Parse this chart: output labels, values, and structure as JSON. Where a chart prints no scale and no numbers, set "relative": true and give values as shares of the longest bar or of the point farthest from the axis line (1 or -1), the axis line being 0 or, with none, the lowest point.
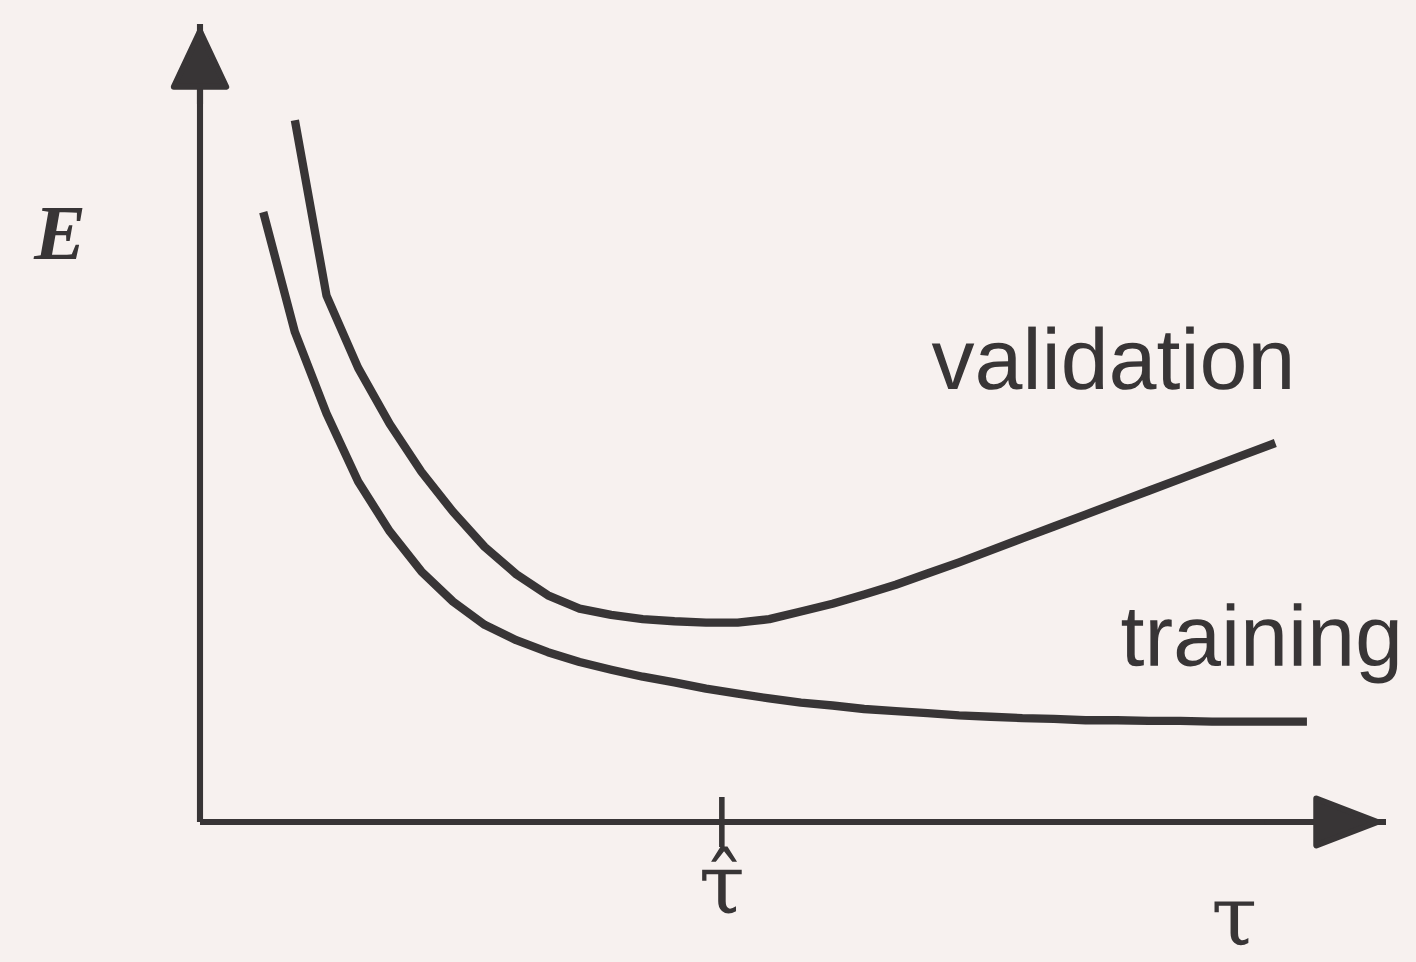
{
  "chart_data": {
    "type": "line",
    "relative": true,
    "xlabel": "τ",
    "ylabel": "E",
    "annotations": [
      "τ̂"
    ],
    "categories": [
      null,
      null,
      null,
      null,
      null,
      null,
      null,
      null,
      null,
      null,
      null,
      null,
      null,
      null,
      null,
      null,
      null,
      null,
      null,
      null,
      null,
      null,
      null,
      null,
      null,
      null,
      null,
      null,
      null,
      null,
      null,
      null,
      null,
      null
    ],
    "series": [
      {
        "name": "validation",
        "color": "#383536",
        "values": [
          null,
          1,
          0.75,
          0.647,
          0.567,
          0.499,
          0.442,
          0.392,
          0.353,
          0.323,
          0.304,
          0.295,
          0.289,
          0.286,
          0.284,
          0.284,
          0.289,
          0.3,
          0.311,
          0.324,
          0.338,
          0.354,
          0.37,
          0.387,
          0.404,
          0.421,
          0.438,
          0.455,
          0.472,
          0.489,
          0.506,
          0.523,
          0.54,
          null
        ]
      },
      {
        "name": "training",
        "color": "#383536",
        "values": [
          0.869,
          0.698,
          0.582,
          0.485,
          0.414,
          0.357,
          0.314,
          0.281,
          0.259,
          0.242,
          0.228,
          0.217,
          0.207,
          0.199,
          0.19,
          0.183,
          0.176,
          0.17,
          0.166,
          0.161,
          0.158,
          0.155,
          0.152,
          0.15,
          0.148,
          0.147,
          0.145,
          0.145,
          0.144,
          0.144,
          0.143,
          0.143,
          0.143,
          0.143
        ]
      }
    ]
  }
}
